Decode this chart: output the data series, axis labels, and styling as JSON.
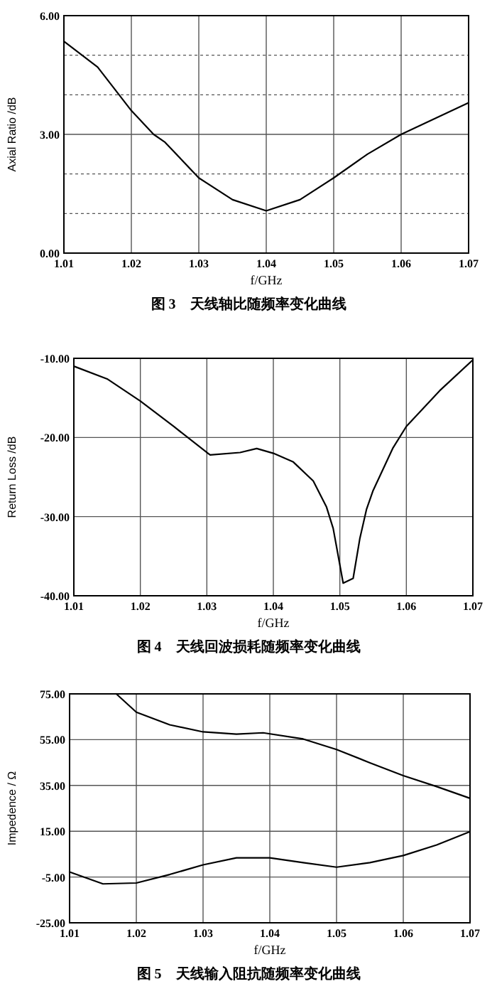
{
  "chart_data": [
    {
      "type": "line",
      "title": "图 3　天线轴比随频率变化曲线",
      "xlabel": "f/GHz",
      "ylabel": "Axial Ratio /dB",
      "x": [
        1.01,
        1.015,
        1.02,
        1.0233,
        1.025,
        1.03,
        1.035,
        1.04,
        1.045,
        1.05,
        1.055,
        1.06,
        1.065,
        1.07
      ],
      "series": [
        {
          "color": "#000000",
          "values": [
            5.35,
            4.7,
            3.6,
            3.0,
            2.8,
            1.9,
            1.35,
            1.07,
            1.35,
            1.9,
            2.5,
            3.0,
            3.4,
            3.8
          ]
        }
      ],
      "xlim": [
        1.01,
        1.07
      ],
      "ylim": [
        0,
        6
      ],
      "xticks": [
        1.01,
        1.02,
        1.03,
        1.04,
        1.05,
        1.06,
        1.07
      ],
      "yticks": [
        {
          "value": 0,
          "label": "0.00"
        },
        {
          "value": 1,
          "label": null
        },
        {
          "value": 2,
          "label": null
        },
        {
          "value": 3,
          "label": "3.00"
        },
        {
          "value": 4,
          "label": null
        },
        {
          "value": 5,
          "label": null
        },
        {
          "value": 6,
          "label": "6.00"
        }
      ],
      "grid": true
    },
    {
      "type": "line",
      "title": "图 4　天线回波损耗随频率变化曲线",
      "xlabel": "f/GHz",
      "ylabel": "Return Loss /dB",
      "x": [
        1.01,
        1.015,
        1.02,
        1.025,
        1.03,
        1.0305,
        1.035,
        1.0375,
        1.04,
        1.043,
        1.046,
        1.048,
        1.049,
        1.0505,
        1.052,
        1.053,
        1.054,
        1.055,
        1.058,
        1.06,
        1.065,
        1.07
      ],
      "series": [
        {
          "color": "#000000",
          "values": [
            -11,
            -12.6,
            -15.4,
            -18.6,
            -21.9,
            -22.2,
            -21.9,
            -21.4,
            -22,
            -23.1,
            -25.5,
            -28.8,
            -31.5,
            -38.4,
            -37.8,
            -32.8,
            -29.1,
            -26.7,
            -21.3,
            -18.6,
            -14.1,
            -10.2
          ]
        }
      ],
      "xlim": [
        1.01,
        1.07
      ],
      "ylim": [
        -40,
        -10
      ],
      "xticks": [
        1.01,
        1.02,
        1.03,
        1.04,
        1.05,
        1.06,
        1.07
      ],
      "yticks": [
        {
          "value": -40,
          "label": "-40.00"
        },
        {
          "value": -30,
          "label": "-30.00"
        },
        {
          "value": -20,
          "label": "-20.00"
        },
        {
          "value": -10,
          "label": "-10.00"
        }
      ],
      "grid": true
    },
    {
      "type": "line",
      "title": "图 5　天线输入阻抗随频率变化曲线",
      "xlabel": "f/GHz",
      "ylabel": "Impedence / Ω",
      "series": [
        {
          "color": "#000000",
          "x": [
            1.017,
            1.02,
            1.025,
            1.03,
            1.035,
            1.039,
            1.045,
            1.05,
            1.055,
            1.06,
            1.065,
            1.07
          ],
          "values": [
            75,
            67,
            61.5,
            58.4,
            57.4,
            58,
            55.3,
            50.7,
            44.9,
            39.3,
            34.5,
            29.4
          ]
        },
        {
          "color": "#000000",
          "x": [
            1.01,
            1.015,
            1.02,
            1.025,
            1.03,
            1.035,
            1.04,
            1.045,
            1.05,
            1.055,
            1.06,
            1.065,
            1.07
          ],
          "values": [
            -2.8,
            -8,
            -7.6,
            -3.9,
            0.3,
            3.4,
            3.4,
            1.3,
            -0.7,
            1.3,
            4.4,
            9,
            14.8
          ]
        }
      ],
      "xlim": [
        1.01,
        1.07
      ],
      "ylim": [
        -25,
        75
      ],
      "xticks": [
        1.01,
        1.02,
        1.03,
        1.04,
        1.05,
        1.06,
        1.07
      ],
      "yticks": [
        {
          "value": -25,
          "label": "-25.00"
        },
        {
          "value": -5,
          "label": "-5.00"
        },
        {
          "value": 15,
          "label": "15.00"
        },
        {
          "value": 35,
          "label": "35.00"
        },
        {
          "value": 55,
          "label": "55.00"
        },
        {
          "value": 75,
          "label": "75.00"
        }
      ],
      "grid": true
    }
  ]
}
